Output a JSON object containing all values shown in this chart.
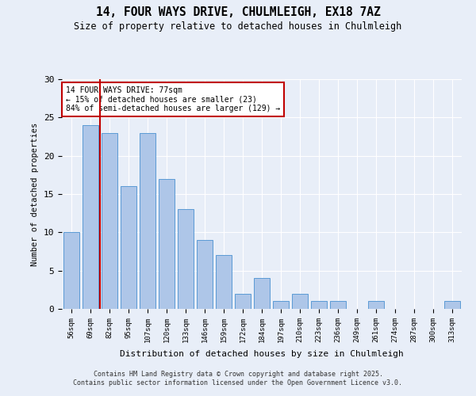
{
  "title1": "14, FOUR WAYS DRIVE, CHULMLEIGH, EX18 7AZ",
  "title2": "Size of property relative to detached houses in Chulmleigh",
  "xlabel": "Distribution of detached houses by size in Chulmleigh",
  "ylabel": "Number of detached properties",
  "categories": [
    "56sqm",
    "69sqm",
    "82sqm",
    "95sqm",
    "107sqm",
    "120sqm",
    "133sqm",
    "146sqm",
    "159sqm",
    "172sqm",
    "184sqm",
    "197sqm",
    "210sqm",
    "223sqm",
    "236sqm",
    "249sqm",
    "261sqm",
    "274sqm",
    "287sqm",
    "300sqm",
    "313sqm"
  ],
  "values": [
    10,
    24,
    23,
    16,
    23,
    17,
    13,
    9,
    7,
    2,
    4,
    1,
    2,
    1,
    1,
    0,
    1,
    0,
    0,
    0,
    1
  ],
  "bar_color": "#aec6e8",
  "bar_edge_color": "#5b9bd5",
  "vline_x": 1.5,
  "vline_color": "#c00000",
  "annotation_text": "14 FOUR WAYS DRIVE: 77sqm\n← 15% of detached houses are smaller (23)\n84% of semi-detached houses are larger (129) →",
  "annotation_box_color": "#ffffff",
  "annotation_box_edge": "#c00000",
  "ylim": [
    0,
    30
  ],
  "yticks": [
    0,
    5,
    10,
    15,
    20,
    25,
    30
  ],
  "background_color": "#e8eef8",
  "grid_color": "#ffffff",
  "footer": "Contains HM Land Registry data © Crown copyright and database right 2025.\nContains public sector information licensed under the Open Government Licence v3.0."
}
